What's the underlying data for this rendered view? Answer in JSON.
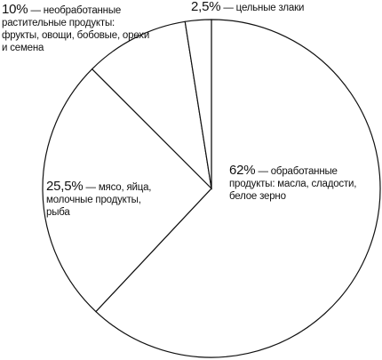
{
  "chart_data": {
    "type": "pie",
    "categories": [
      "— обработанные продукты: масла, сладости, белое зерно",
      "— мясо, яйца, молочные продукты, рыба",
      "— необработанные растительные продукты: фрукты, овощи, бобовые, орехи и семена",
      "— цельные злаки"
    ],
    "values": [
      62,
      25.5,
      10,
      2.5
    ],
    "value_labels": [
      "62%",
      "25,5%",
      "10%",
      "2,5%"
    ],
    "color": "#ffffff"
  }
}
